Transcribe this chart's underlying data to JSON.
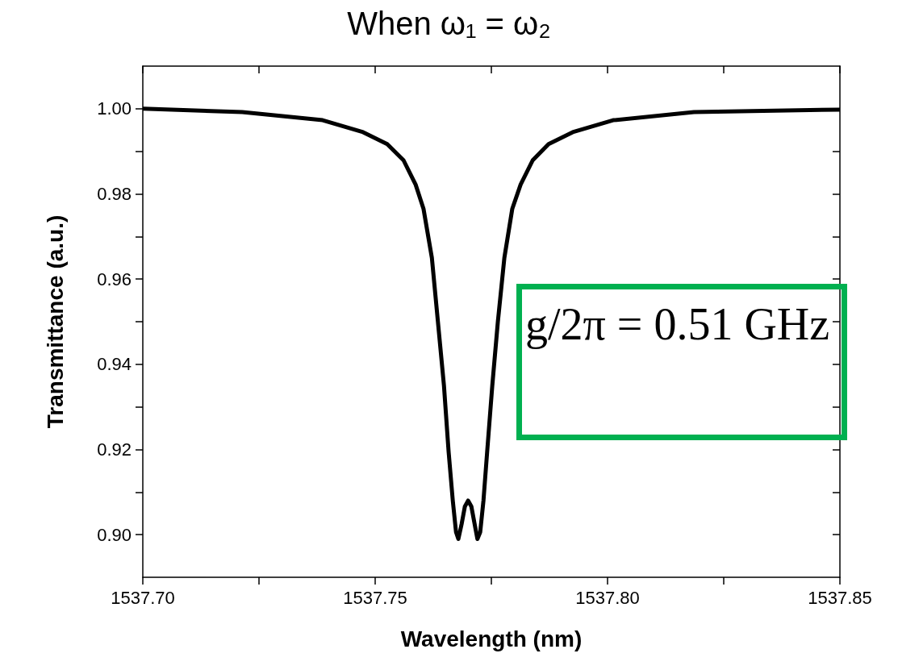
{
  "chart_data": {
    "type": "line",
    "title": "When ω₁ = ω₂",
    "xlabel": "Wavelength (nm)",
    "ylabel": "Transmittance (a.u.)",
    "annotations": [
      "g/2π = 0.51 GHz"
    ],
    "series": [
      {
        "color": "#000000",
        "x": [
          1537.7,
          1537.7214,
          1537.7387,
          1537.7474,
          1537.7526,
          1537.7561,
          1537.7587,
          1537.7604,
          1537.7622,
          1537.7635,
          1537.7648,
          1537.7658,
          1537.7667,
          1537.7674,
          1537.7679,
          1537.7686,
          1537.7693,
          1537.77,
          1537.7707,
          1537.7714,
          1537.772,
          1537.7726,
          1537.7733,
          1537.7741,
          1537.7752,
          1537.7764,
          1537.7778,
          1537.7795,
          1537.7813,
          1537.7839,
          1537.7873,
          1537.7925,
          1537.8012,
          1537.8186,
          1537.85
        ],
        "values": [
          1.0,
          0.9992,
          0.9973,
          0.9945,
          0.9917,
          0.9879,
          0.9822,
          0.9765,
          0.965,
          0.95,
          0.935,
          0.9195,
          0.908,
          0.9006,
          0.899,
          0.9025,
          0.9066,
          0.908,
          0.9066,
          0.9025,
          0.899,
          0.9006,
          0.908,
          0.9195,
          0.935,
          0.95,
          0.965,
          0.9765,
          0.9822,
          0.9879,
          0.9917,
          0.9945,
          0.9973,
          0.9992,
          0.9998
        ]
      }
    ],
    "xlim": [
      1537.7,
      1537.85
    ],
    "xticks": [
      {
        "value": 1537.7,
        "label": "1537.70"
      },
      {
        "value": 1537.725,
        "label": null
      },
      {
        "value": 1537.75,
        "label": "1537.75"
      },
      {
        "value": 1537.775,
        "label": null
      },
      {
        "value": 1537.8,
        "label": "1537.80"
      },
      {
        "value": 1537.825,
        "label": null
      },
      {
        "value": 1537.85,
        "label": "1537.85"
      }
    ],
    "ylim": [
      0.89,
      1.01
    ],
    "yticks": [
      {
        "value": 0.9,
        "label": "0.90"
      },
      {
        "value": 0.91,
        "label": null
      },
      0.92,
      {
        "value": 0.93,
        "label": null
      },
      0.94,
      {
        "value": 0.95,
        "label": null
      },
      0.96,
      {
        "value": 0.97,
        "label": null
      },
      0.98,
      {
        "value": 0.99,
        "label": null
      },
      {
        "value": 1,
        "label": "1.00"
      }
    ],
    "grid": false
  }
}
